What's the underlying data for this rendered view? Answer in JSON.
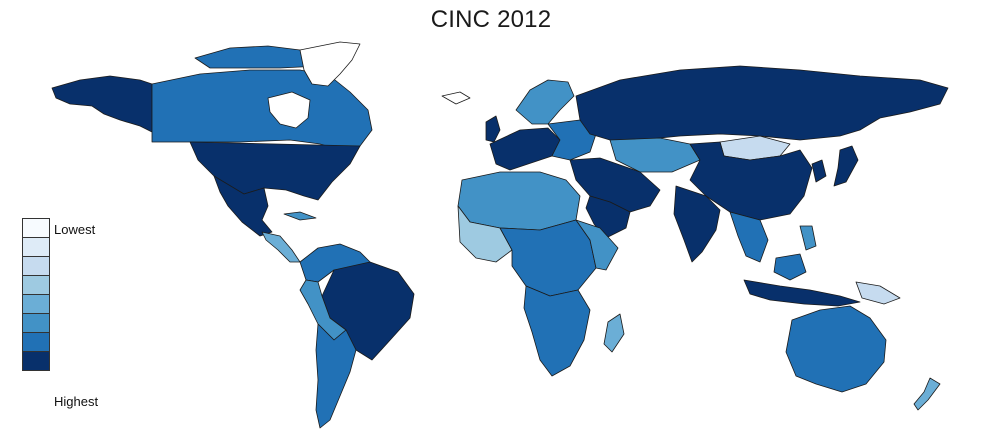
{
  "title": "CINC 2012",
  "legend": {
    "low_label": "Lowest",
    "high_label": "Highest",
    "colors": [
      "#f7fbff",
      "#deebf7",
      "#c6dbef",
      "#9ecae1",
      "#6baed6",
      "#4292c6",
      "#2171b5",
      "#08306b"
    ]
  },
  "colors": {
    "border": "#1b1b1b",
    "ocean": "#ffffff"
  }
}
